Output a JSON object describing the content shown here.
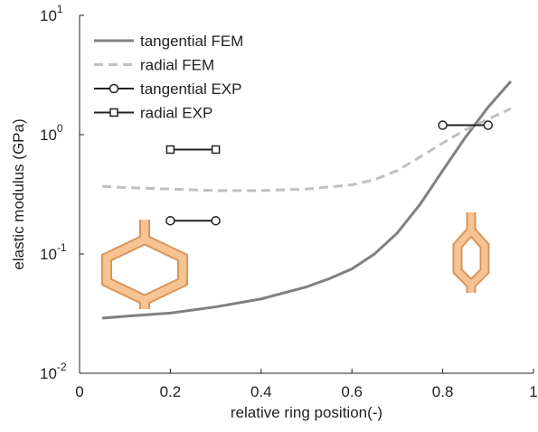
{
  "chart_data": {
    "type": "line",
    "xlabel": "relative ring position(-)",
    "ylabel": "elastic modulus (GPa)",
    "log_y": true,
    "xlim": [
      0,
      1
    ],
    "xticks": [
      0,
      0.2,
      0.4,
      0.6,
      0.8,
      1
    ],
    "ylim": [
      0.01,
      10
    ],
    "yticks": [
      {
        "value": 0.01,
        "label": "10",
        "exponent": "-2"
      },
      {
        "value": 0.1,
        "label": "10",
        "exponent": "-1"
      },
      {
        "value": 1,
        "label": "10",
        "exponent": "0"
      },
      {
        "value": 10,
        "label": "10",
        "exponent": "1"
      }
    ],
    "series": [
      {
        "name": "tangential FEM",
        "color": "#808080",
        "style": "solid",
        "marker": "none",
        "x": [
          0.05,
          0.1,
          0.2,
          0.3,
          0.4,
          0.5,
          0.55,
          0.6,
          0.65,
          0.7,
          0.75,
          0.8,
          0.85,
          0.9,
          0.95
        ],
        "values": [
          0.029,
          0.03,
          0.032,
          0.036,
          0.042,
          0.053,
          0.062,
          0.075,
          0.1,
          0.15,
          0.26,
          0.5,
          0.95,
          1.7,
          2.8
        ]
      },
      {
        "name": "radial FEM",
        "color": "#c0c0c0",
        "style": "dashed",
        "marker": "none",
        "x": [
          0.05,
          0.1,
          0.2,
          0.3,
          0.4,
          0.5,
          0.6,
          0.65,
          0.7,
          0.75,
          0.8,
          0.85,
          0.9,
          0.95
        ],
        "values": [
          0.37,
          0.36,
          0.35,
          0.34,
          0.34,
          0.35,
          0.38,
          0.42,
          0.5,
          0.65,
          0.85,
          1.1,
          1.35,
          1.65
        ]
      },
      {
        "name": "tangential EXP",
        "color": "#222222",
        "style": "solid",
        "marker": "circle",
        "x": [
          0.2,
          0.3,
          null,
          0.8,
          0.9
        ],
        "values": [
          0.19,
          0.19,
          null,
          1.2,
          1.2
        ]
      },
      {
        "name": "radial EXP",
        "color": "#222222",
        "style": "solid",
        "marker": "square",
        "x": [
          0.2,
          0.3
        ],
        "values": [
          0.75,
          0.75
        ]
      }
    ]
  }
}
